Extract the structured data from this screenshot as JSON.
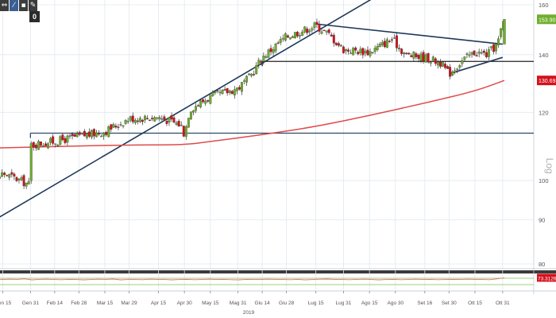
{
  "toolbar": {
    "tools": [
      {
        "label": "⇔",
        "icon": "pan-icon"
      },
      {
        "label": "⁄",
        "icon": "draw-line-icon"
      },
      {
        "label": "▪",
        "icon": "indicator-icon"
      },
      {
        "label": "✎",
        "icon": "annotate-icon"
      }
    ],
    "badge": "0"
  },
  "chart_data": [
    {
      "type": "candlestick",
      "y_scale": "log",
      "y_axis_label": "Log",
      "ylim": [
        75,
        165
      ],
      "y_ticks": [
        80,
        90,
        100,
        120,
        140,
        160
      ],
      "x_ticks": [
        "Gen 15",
        "Gen 31",
        "Feb 14",
        "Feb 28",
        "Mar 15",
        "Mar 29",
        "Apr 15",
        "Apr 30",
        "May 15",
        "Mag 31",
        "Giu 14",
        "Giu 28",
        "Lug 15",
        "Lug 31",
        "Ago 15",
        "Ago 30",
        "Set 16",
        "Set 30",
        "Ott 15",
        "Ott 31"
      ],
      "year_label": "2019",
      "price_path": [
        [
          "Gen 2",
          86
        ],
        [
          "Gen 8",
          99
        ],
        [
          "Gen 15",
          102
        ],
        [
          "Gen 25",
          100
        ],
        [
          "Gen 30",
          99
        ],
        [
          "Gen 31",
          110
        ],
        [
          "Feb 7",
          110.5
        ],
        [
          "Feb 14",
          111
        ],
        [
          "Feb 28",
          112.5
        ],
        [
          "Mar 15",
          114
        ],
        [
          "Mar 29",
          118
        ],
        [
          "Apr 15",
          118.5
        ],
        [
          "Apr 28",
          116
        ],
        [
          "Apr 30",
          113
        ],
        [
          "May 3",
          121
        ],
        [
          "May 15",
          125
        ],
        [
          "Mag 31",
          128
        ],
        [
          "Giu 7",
          132
        ],
        [
          "Giu 14",
          139
        ],
        [
          "Giu 28",
          147
        ],
        [
          "Lug 10",
          150
        ],
        [
          "Lug 15",
          151.5
        ],
        [
          "Lug 22",
          148
        ],
        [
          "Lug 31",
          142
        ],
        [
          "Ago 15",
          141
        ],
        [
          "Ago 28",
          146
        ],
        [
          "Set 5",
          140
        ],
        [
          "Set 16",
          139
        ],
        [
          "Set 25",
          137
        ],
        [
          "Set 30",
          133
        ],
        [
          "Ott 8",
          138
        ],
        [
          "Ott 15",
          141
        ],
        [
          "Ott 22",
          140
        ],
        [
          "Ott 28",
          144
        ],
        [
          "Nov 1",
          153.9
        ]
      ],
      "moving_average": [
        [
          "Gen 2",
          109
        ],
        [
          "Feb 14",
          109.5
        ],
        [
          "Mar 29",
          110
        ],
        [
          "Apr 30",
          110
        ],
        [
          "May 15",
          111
        ],
        [
          "Giu 14",
          113
        ],
        [
          "Lug 15",
          115.5
        ],
        [
          "Ago 15",
          119
        ],
        [
          "Set 16",
          123
        ],
        [
          "Ott 15",
          127
        ],
        [
          "Nov 1",
          130.69
        ]
      ],
      "horizontal_lines": [
        113.5,
        137.5
      ],
      "trendlines": [
        {
          "from": [
            "Gen 2",
            88
          ],
          "to": [
            "Nov 1",
            200
          ]
        },
        {
          "from": [
            "Lug 15",
            152
          ],
          "to": [
            "Ott 31",
            144
          ]
        },
        {
          "from": [
            "Set 30",
            133
          ],
          "to": [
            "Ott 31",
            139
          ]
        }
      ],
      "last_price_label": "153.90",
      "ma_label": "130.6937",
      "colors": {
        "up": "#6fae2c",
        "down": "#d4111c",
        "ma": "#e04a4a",
        "trend": "#1f3a5a",
        "hline": "#2d4a66",
        "support": "#222222",
        "price_badge": "#6fae2c",
        "ma_badge": "#d4111c",
        "grid": "#e1e8ee"
      }
    },
    {
      "type": "line",
      "label": "73.3126",
      "ylim": [
        0,
        100
      ],
      "ref_lines": [
        30,
        70
      ],
      "values": [
        65,
        66,
        60,
        62,
        64,
        63,
        66,
        60,
        63,
        64,
        62,
        61,
        63,
        62,
        60,
        62,
        64,
        63,
        65,
        60,
        62,
        62,
        61,
        64,
        63,
        62,
        60,
        62,
        63,
        61,
        62,
        64,
        62,
        63,
        61,
        60,
        63,
        62,
        62,
        64,
        63,
        62,
        61,
        63,
        60,
        62,
        64,
        65,
        63,
        62,
        61,
        63,
        64,
        62,
        60,
        62,
        63,
        61,
        62,
        64,
        62,
        63,
        61,
        62,
        63,
        62,
        64,
        63,
        62,
        61,
        66,
        73
      ],
      "colors": {
        "line": "#e07070",
        "ref": "#7fbf4f"
      }
    }
  ]
}
